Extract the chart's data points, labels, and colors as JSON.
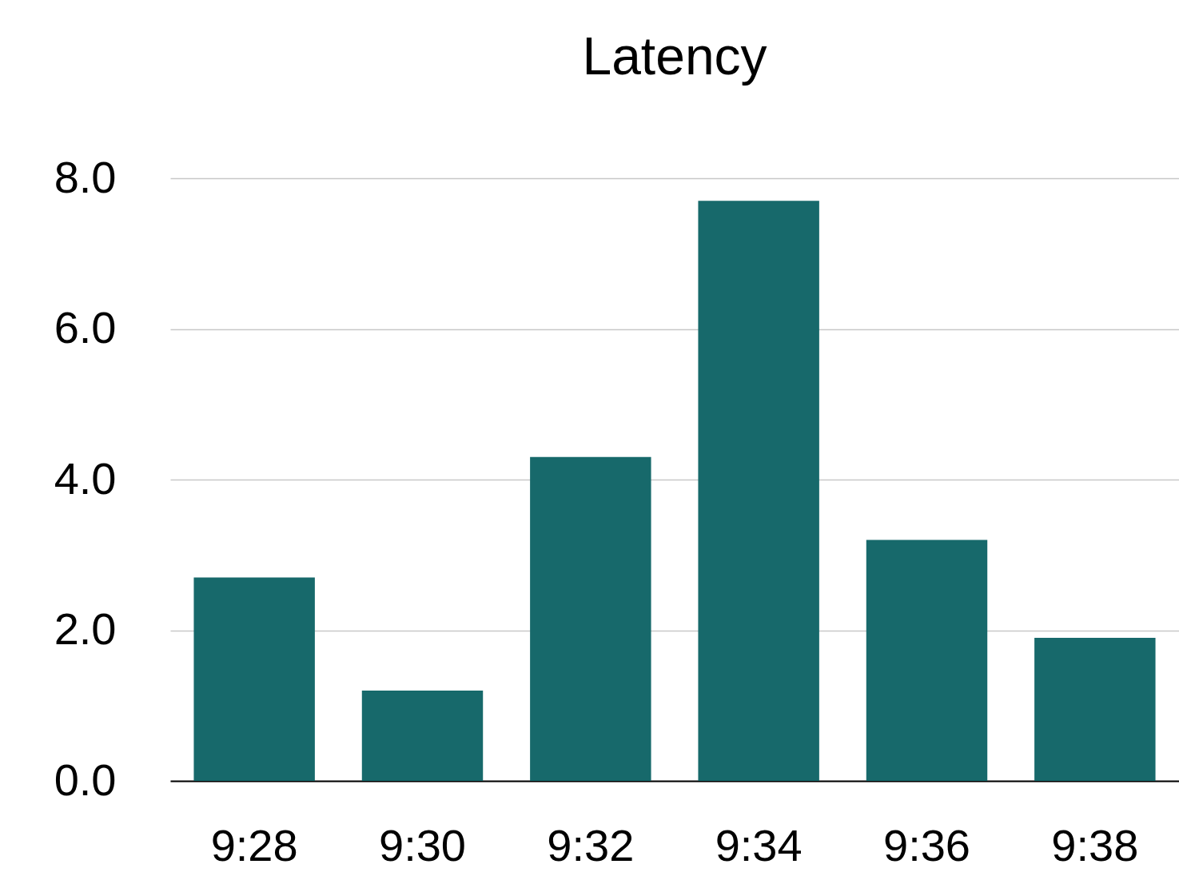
{
  "chart_data": {
    "type": "bar",
    "title": "Latency",
    "categories": [
      "9:28",
      "9:30",
      "9:32",
      "9:34",
      "9:36",
      "9:38"
    ],
    "values": [
      2.7,
      1.2,
      4.3,
      7.7,
      3.2,
      1.9
    ],
    "color": "#17696b",
    "ylim": [
      0,
      8
    ],
    "yticks": [
      {
        "value": 0,
        "label": "0.0"
      },
      {
        "value": 2,
        "label": "2.0"
      },
      {
        "value": 4,
        "label": "4.0"
      },
      {
        "value": 6,
        "label": "6.0"
      },
      {
        "value": 8,
        "label": "8.0"
      }
    ],
    "grid": "y"
  }
}
